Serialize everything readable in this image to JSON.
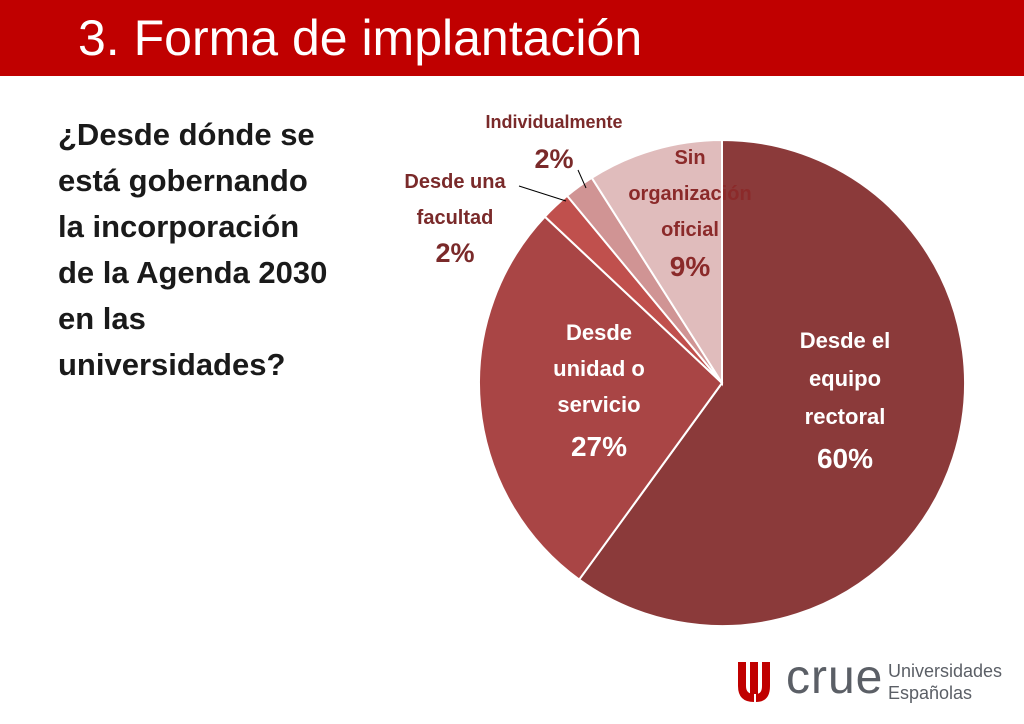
{
  "slide": {
    "title": "3. Forma de implantación",
    "question_lines": [
      "¿Desde dónde se",
      "está gobernando",
      "la incorporación",
      "de la Agenda 2030",
      "en las",
      "universidades?"
    ]
  },
  "logo": {
    "wordmark": "crue",
    "line1": "Universidades",
    "line2": "Españolas",
    "color": "#c00000"
  },
  "chart_data": {
    "type": "pie",
    "title": "",
    "slices": [
      {
        "label_lines": [
          "Desde el",
          "equipo",
          "rectoral"
        ],
        "value_label": "60%",
        "value": 60,
        "color": "#8b3a3a"
      },
      {
        "label_lines": [
          "Desde",
          "unidad o",
          "servicio"
        ],
        "value_label": "27%",
        "value": 27,
        "color": "#a94545"
      },
      {
        "label_lines": [
          "Desde una",
          "facultad"
        ],
        "value_label": "2%",
        "value": 2,
        "color": "#c0504d"
      },
      {
        "label_lines": [
          "Individualmente"
        ],
        "value_label": "2%",
        "value": 2,
        "color": "#d09494"
      },
      {
        "label_lines": [
          "Sin",
          "organización",
          "oficial"
        ],
        "value_label": "9%",
        "value": 9,
        "color": "#e0bcbc"
      }
    ]
  }
}
